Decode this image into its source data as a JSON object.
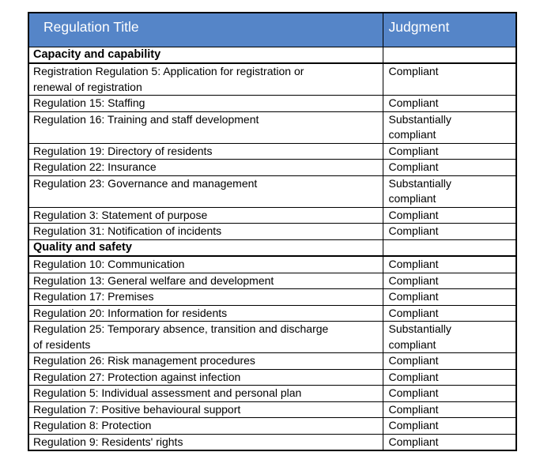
{
  "colors": {
    "header_background": "#5585C8",
    "header_text": "#FFFFFF",
    "border": "#000000",
    "body_text": "#000000",
    "page_background": "#FFFFFF"
  },
  "table": {
    "columns": [
      {
        "label": "Regulation Title"
      },
      {
        "label": "Judgment"
      }
    ],
    "rows": [
      {
        "type": "section",
        "title": "Capacity and capability",
        "judgment": ""
      },
      {
        "type": "row",
        "title": "Registration Regulation 5: Application for registration or renewal of registration",
        "judgment": "Compliant"
      },
      {
        "type": "row",
        "title": "Regulation 15: Staffing",
        "judgment": "Compliant"
      },
      {
        "type": "row",
        "title": "Regulation 16: Training and staff development",
        "judgment": "Substantially compliant"
      },
      {
        "type": "row",
        "title": "Regulation 19: Directory of residents",
        "judgment": "Compliant"
      },
      {
        "type": "row",
        "title": "Regulation 22: Insurance",
        "judgment": "Compliant"
      },
      {
        "type": "row",
        "title": "Regulation 23: Governance and management",
        "judgment": "Substantially compliant"
      },
      {
        "type": "row",
        "title": "Regulation 3: Statement of purpose",
        "judgment": "Compliant"
      },
      {
        "type": "row",
        "title": "Regulation 31: Notification of incidents",
        "judgment": "Compliant"
      },
      {
        "type": "section",
        "title": "Quality and safety",
        "judgment": ""
      },
      {
        "type": "row",
        "title": "Regulation 10: Communication",
        "judgment": "Compliant"
      },
      {
        "type": "row",
        "title": "Regulation 13: General welfare and development",
        "judgment": "Compliant"
      },
      {
        "type": "row",
        "title": "Regulation 17: Premises",
        "judgment": "Compliant"
      },
      {
        "type": "row",
        "title": "Regulation 20: Information for residents",
        "judgment": "Compliant"
      },
      {
        "type": "row",
        "title": "Regulation 25: Temporary absence, transition and discharge of residents",
        "judgment": "Substantially compliant"
      },
      {
        "type": "row",
        "title": "Regulation 26: Risk management procedures",
        "judgment": "Compliant"
      },
      {
        "type": "row",
        "title": "Regulation 27: Protection against infection",
        "judgment": "Compliant"
      },
      {
        "type": "row",
        "title": "Regulation 5: Individual assessment and personal plan",
        "judgment": "Compliant"
      },
      {
        "type": "row",
        "title": "Regulation 7: Positive behavioural support",
        "judgment": "Compliant"
      },
      {
        "type": "row",
        "title": "Regulation 8: Protection",
        "judgment": "Compliant"
      },
      {
        "type": "row",
        "title": "Regulation 9: Residents' rights",
        "judgment": "Compliant"
      }
    ]
  }
}
